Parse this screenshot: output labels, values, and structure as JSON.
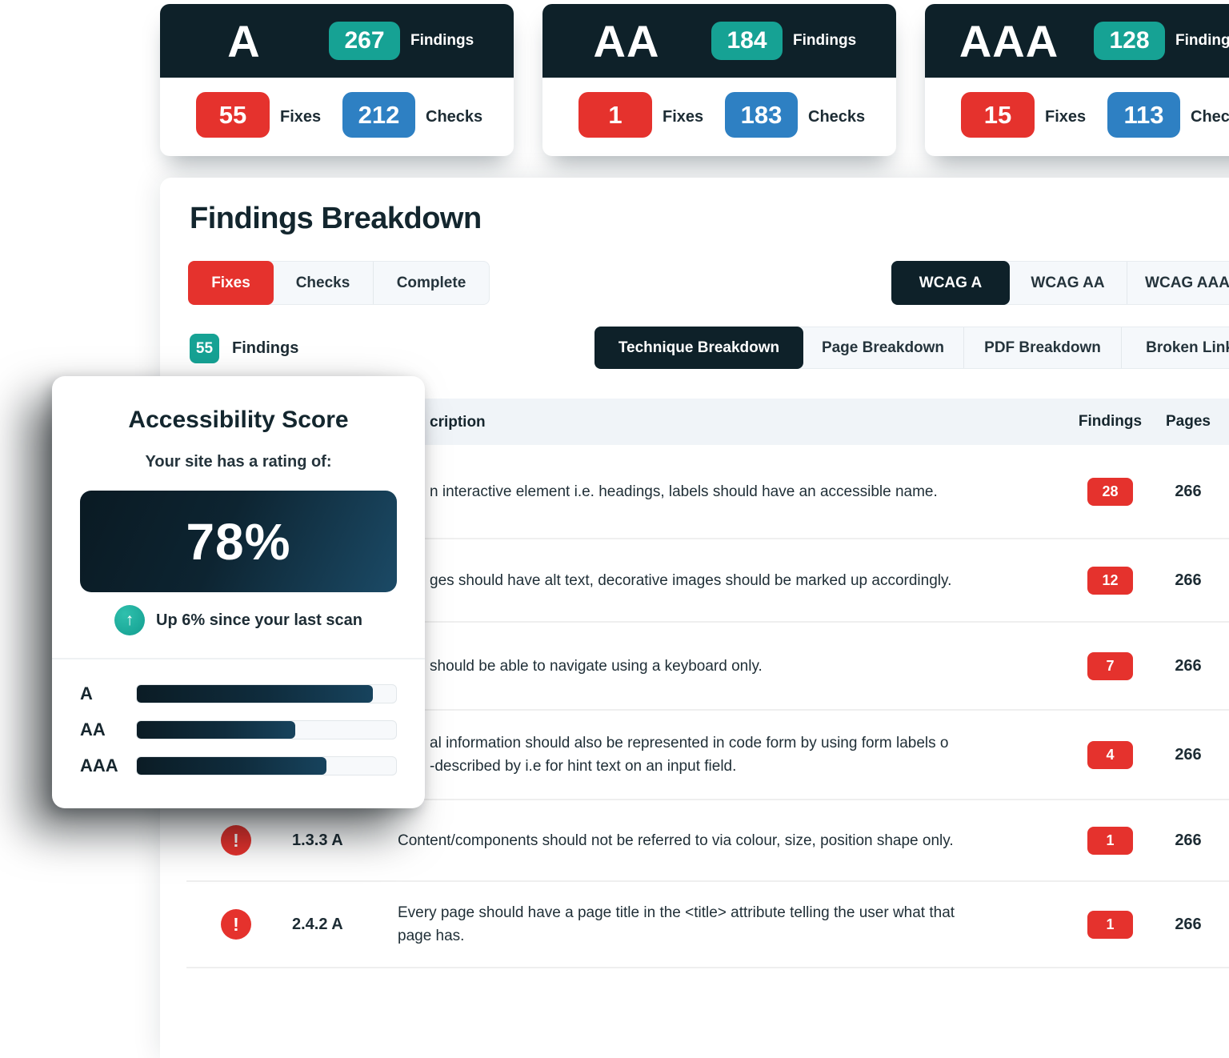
{
  "colors": {
    "dark": "#0e2129",
    "teal": "#16a294",
    "red": "#e5322d",
    "blue": "#2e80c3"
  },
  "summary_cards": [
    {
      "level": "A",
      "findings": "267",
      "findings_label": "Findings",
      "fixes": "55",
      "fixes_label": "Fixes",
      "checks": "212",
      "checks_label": "Checks"
    },
    {
      "level": "AA",
      "findings": "184",
      "findings_label": "Findings",
      "fixes": "1",
      "fixes_label": "Fixes",
      "checks": "183",
      "checks_label": "Checks"
    },
    {
      "level": "AAA",
      "findings": "128",
      "findings_label": "Findings",
      "fixes": "15",
      "fixes_label": "Fixes",
      "checks": "113",
      "checks_label": "Checks"
    }
  ],
  "panel": {
    "title": "Findings Breakdown",
    "filter_tabs": [
      {
        "label": "Fixes",
        "active": true
      },
      {
        "label": "Checks",
        "active": false
      },
      {
        "label": "Complete",
        "active": false
      }
    ],
    "wcag_tabs": [
      {
        "label": "WCAG A",
        "active": true
      },
      {
        "label": "WCAG AA",
        "active": false
      },
      {
        "label": "WCAG AAA",
        "active": false
      }
    ],
    "findings_count": "55",
    "findings_count_label": "Findings",
    "breakdown_tabs": [
      {
        "label": "Technique Breakdown",
        "active": true
      },
      {
        "label": "Page Breakdown",
        "active": false
      },
      {
        "label": "PDF Breakdown",
        "active": false
      },
      {
        "label": "Broken Link",
        "active": false
      }
    ],
    "table": {
      "header": {
        "description": "cription",
        "findings": "Findings",
        "pages": "Pages"
      },
      "rows": [
        {
          "code": "",
          "line1": "n interactive element i.e. headings, labels should have an accessible name.",
          "line2": "",
          "findings": "28",
          "pages": "266"
        },
        {
          "code": "",
          "line1": "ges should have alt text, decorative images should be marked up accordingly.",
          "line2": "",
          "findings": "12",
          "pages": "266"
        },
        {
          "code": "",
          "line1": "should be able to navigate using a keyboard only.",
          "line2": "",
          "findings": "7",
          "pages": "266"
        },
        {
          "code": "",
          "line1": "al information should also be represented in code form by using form labels o",
          "line2": "-described by i.e for hint text on an input field.",
          "findings": "4",
          "pages": "266"
        },
        {
          "code": "1.3.3 A",
          "line1": "Content/components should not be referred to via colour, size, position shape only.",
          "line2": "",
          "findings": "1",
          "pages": "266"
        },
        {
          "code": "2.4.2 A",
          "line1": "Every page should have a page title in the <title> attribute telling the user what that",
          "line2": "page has.",
          "findings": "1",
          "pages": "266"
        }
      ]
    }
  },
  "score_card": {
    "title": "Accessibility Score",
    "subtitle": "Your site has a rating of:",
    "score": "78%",
    "trend_icon": "up-arrow",
    "trend_text": "Up 6% since your last scan",
    "bars": [
      {
        "label": "A",
        "percent": 91
      },
      {
        "label": "AA",
        "percent": 61
      },
      {
        "label": "AAA",
        "percent": 73
      }
    ]
  }
}
